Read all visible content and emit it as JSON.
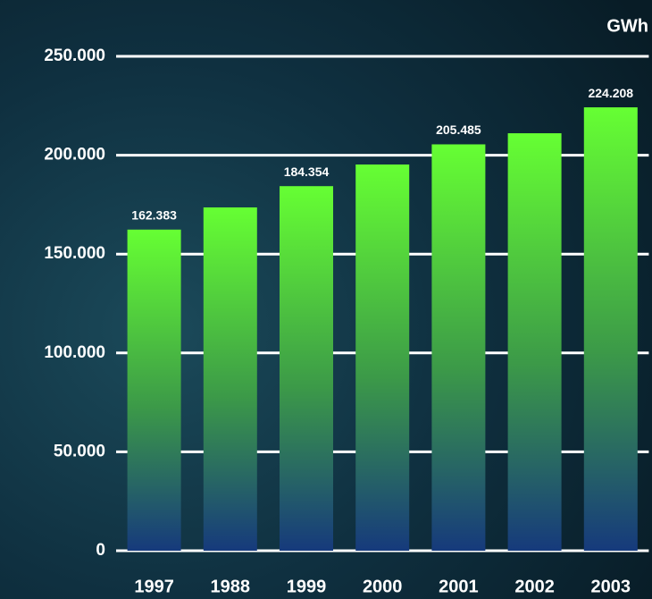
{
  "chart_data": {
    "type": "bar",
    "unit_label": "GWh",
    "categories": [
      "1997",
      "1988",
      "1999",
      "2000",
      "2001",
      "2002",
      "2003"
    ],
    "values": [
      162383,
      173600,
      184354,
      195300,
      205485,
      211100,
      224208
    ],
    "value_labels": [
      "162.383",
      null,
      "184.354",
      null,
      "205.485",
      null,
      "224.208"
    ],
    "color": "#66ff33",
    "ylim": [
      0,
      250000
    ],
    "yticks": [
      {
        "value": 0,
        "label": "0"
      },
      {
        "value": 50000,
        "label": "50.000"
      },
      {
        "value": 100000,
        "label": "100.000"
      },
      {
        "value": 150000,
        "label": "150.000"
      },
      {
        "value": 200000,
        "label": "200.000"
      },
      {
        "value": 250000,
        "label": "250.000"
      }
    ],
    "grid": true
  }
}
